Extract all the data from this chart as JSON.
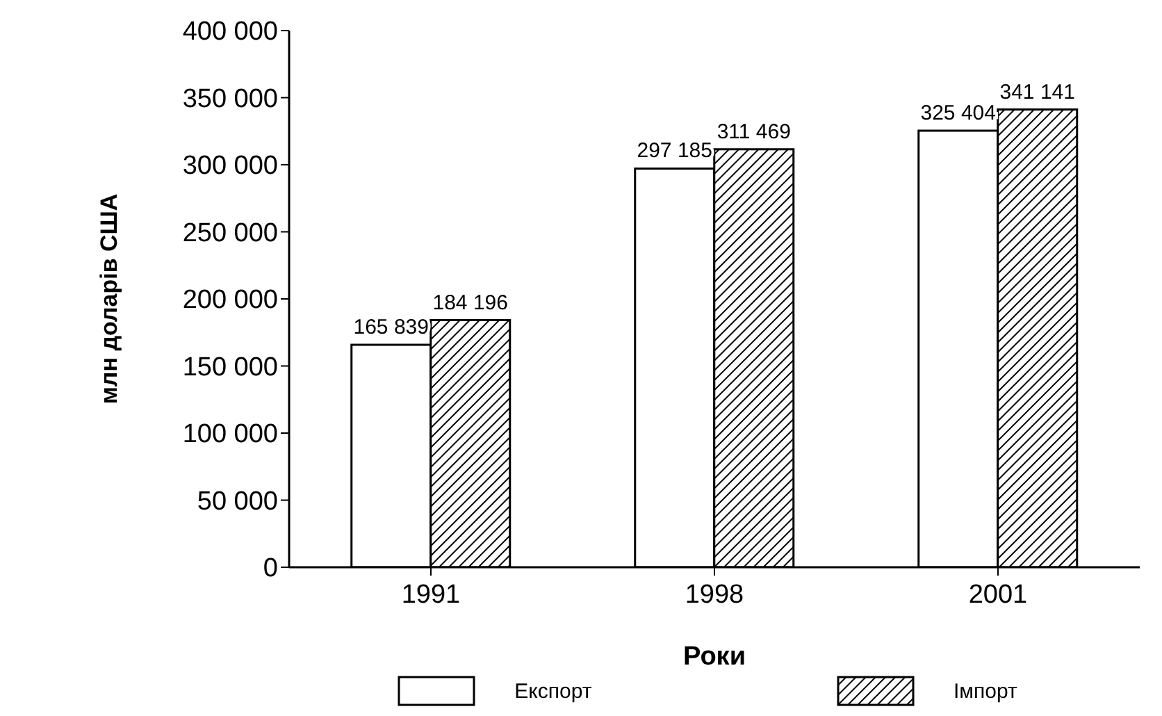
{
  "chart_data": {
    "type": "bar",
    "ylabel": "млн доларів США",
    "xlabel": "Роки",
    "categories": [
      "1991",
      "1998",
      "2001"
    ],
    "series": [
      {
        "name": "Експорт",
        "color": "#ffffff",
        "values": [
          165839,
          297185,
          325404
        ],
        "value_labels": [
          "165 839",
          "297 185",
          "325 404"
        ]
      },
      {
        "name": "Імпорт",
        "color": "#000000",
        "values": [
          184196,
          311469,
          341141
        ],
        "value_labels": [
          "184 196",
          "311 469",
          "341 141"
        ]
      }
    ],
    "ylim": [
      0,
      400000
    ],
    "yticks": [
      {
        "value": 0,
        "label": "0"
      },
      {
        "value": 50000,
        "label": "50 000"
      },
      {
        "value": 100000,
        "label": "100 000"
      },
      {
        "value": 150000,
        "label": "150 000"
      },
      {
        "value": 200000,
        "label": "200 000"
      },
      {
        "value": 250000,
        "label": "250 000"
      },
      {
        "value": 300000,
        "label": "300 000"
      },
      {
        "value": 350000,
        "label": "350 000"
      },
      {
        "value": 400000,
        "label": "400 000"
      }
    ],
    "grid": false,
    "legend": "bottom"
  }
}
